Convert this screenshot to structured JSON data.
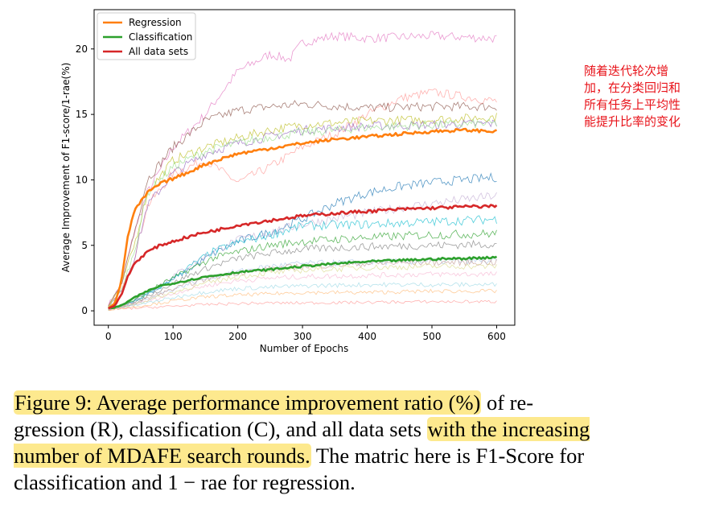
{
  "chart_data": {
    "type": "line",
    "title": "",
    "xlabel": "Number of Epochs",
    "ylabel": "Average Improvement of F1-score/1-rae(%)",
    "xlim": [
      -22,
      628
    ],
    "ylim": [
      -1.1,
      23.0
    ],
    "xticks": [
      0,
      100,
      200,
      300,
      400,
      500,
      600
    ],
    "yticks": [
      0,
      5,
      10,
      15,
      20
    ],
    "grid": false,
    "legend_position": "top-left",
    "series": [
      {
        "name": "Regression",
        "color": "#ff7f0e",
        "x": [
          0,
          10,
          20,
          30,
          40,
          60,
          80,
          100,
          120,
          150,
          180,
          200,
          250,
          300,
          350,
          400,
          450,
          500,
          550,
          600
        ],
        "values": [
          0.2,
          0.6,
          2.2,
          5.7,
          7.6,
          9.0,
          9.7,
          10.1,
          10.5,
          11.2,
          11.7,
          12.0,
          12.4,
          12.8,
          13.1,
          13.3,
          13.5,
          13.7,
          13.8,
          13.7
        ]
      },
      {
        "name": "Classification",
        "color": "#2ca02c",
        "x": [
          0,
          10,
          20,
          30,
          40,
          60,
          80,
          100,
          120,
          150,
          180,
          200,
          250,
          300,
          350,
          400,
          450,
          500,
          550,
          600
        ],
        "values": [
          0.2,
          0.25,
          0.4,
          0.7,
          1.0,
          1.5,
          1.9,
          2.1,
          2.3,
          2.6,
          2.8,
          2.95,
          3.15,
          3.4,
          3.6,
          3.75,
          3.85,
          3.95,
          4.0,
          4.1
        ]
      },
      {
        "name": "All data sets",
        "color": "#d62728",
        "x": [
          0,
          10,
          20,
          30,
          40,
          60,
          80,
          100,
          120,
          150,
          180,
          200,
          250,
          300,
          350,
          400,
          450,
          500,
          550,
          600
        ],
        "values": [
          0.2,
          0.4,
          1.2,
          2.6,
          3.6,
          4.5,
          5.0,
          5.3,
          5.6,
          6.0,
          6.3,
          6.55,
          6.9,
          7.25,
          7.45,
          7.6,
          7.75,
          7.85,
          7.95,
          8.0
        ]
      }
    ],
    "background_series": [
      {
        "color": "#e377c2",
        "x": [
          0,
          20,
          40,
          60,
          100,
          150,
          200,
          250,
          280,
          300,
          350,
          400,
          500,
          600
        ],
        "values": [
          0.5,
          2.0,
          6.0,
          9.0,
          12.5,
          15.0,
          18.3,
          19.6,
          19.2,
          20.5,
          21.0,
          20.8,
          21.0,
          20.8
        ]
      },
      {
        "color": "#ff9896",
        "x": [
          0,
          20,
          40,
          60,
          100,
          150,
          200,
          250,
          300,
          350,
          400,
          450,
          500,
          600
        ],
        "values": [
          0.3,
          1.5,
          4.0,
          8.0,
          10.5,
          11.5,
          9.8,
          11.0,
          12.5,
          13.5,
          15.0,
          16.2,
          16.7,
          16.0
        ]
      },
      {
        "color": "#8c564b",
        "x": [
          0,
          20,
          40,
          60,
          100,
          150,
          200,
          250,
          300,
          400,
          500,
          600
        ],
        "values": [
          0.3,
          2.0,
          6.0,
          10.0,
          12.5,
          14.5,
          15.3,
          15.6,
          15.8,
          15.5,
          15.6,
          15.6
        ]
      },
      {
        "color": "#bcbd22",
        "x": [
          0,
          20,
          40,
          60,
          100,
          150,
          200,
          250,
          300,
          400,
          500,
          600
        ],
        "values": [
          0.3,
          2.0,
          5.0,
          9.0,
          11.5,
          12.5,
          13.2,
          13.8,
          14.2,
          14.5,
          14.6,
          14.8
        ]
      },
      {
        "color": "#9467bd",
        "x": [
          0,
          20,
          40,
          60,
          100,
          150,
          200,
          250,
          300,
          400,
          500,
          600
        ],
        "values": [
          0.3,
          1.5,
          4.0,
          8.0,
          10.5,
          12.0,
          12.8,
          13.3,
          13.8,
          14.1,
          14.2,
          14.3
        ]
      },
      {
        "color": "#98df8a",
        "x": [
          0,
          20,
          40,
          60,
          100,
          150,
          200,
          250,
          300,
          400,
          500,
          600
        ],
        "values": [
          0.3,
          1.5,
          4.5,
          9.0,
          11.0,
          12.2,
          12.8,
          13.3,
          13.6,
          14.0,
          14.2,
          14.3
        ]
      },
      {
        "color": "#1f77b4",
        "x": [
          0,
          20,
          40,
          80,
          120,
          160,
          200,
          250,
          300,
          350,
          400,
          450,
          500,
          600
        ],
        "values": [
          0.1,
          0.3,
          0.8,
          1.8,
          3.0,
          4.3,
          5.3,
          6.0,
          7.0,
          8.2,
          9.0,
          9.5,
          9.8,
          10.2
        ]
      },
      {
        "color": "#c5b0d5",
        "x": [
          0,
          40,
          80,
          120,
          160,
          200,
          250,
          300,
          400,
          500,
          600
        ],
        "values": [
          0.1,
          0.8,
          2.0,
          3.3,
          4.5,
          5.4,
          6.0,
          6.6,
          7.5,
          8.2,
          8.8
        ]
      },
      {
        "color": "#17becf",
        "x": [
          0,
          40,
          80,
          120,
          160,
          200,
          250,
          300,
          400,
          500,
          600
        ],
        "values": [
          0.1,
          0.7,
          1.8,
          3.2,
          4.5,
          5.2,
          5.8,
          6.5,
          6.6,
          6.8,
          7.0
        ]
      },
      {
        "color": "#2ca02c",
        "x": [
          0,
          40,
          80,
          120,
          160,
          200,
          250,
          300,
          400,
          500,
          600
        ],
        "values": [
          0.1,
          0.8,
          2.0,
          3.0,
          4.0,
          4.5,
          5.0,
          5.3,
          5.6,
          5.8,
          5.9
        ]
      },
      {
        "color": "#7f7f7f",
        "x": [
          0,
          40,
          80,
          120,
          160,
          200,
          250,
          300,
          400,
          500,
          600
        ],
        "values": [
          0.1,
          0.6,
          1.6,
          2.6,
          3.4,
          4.0,
          4.4,
          4.7,
          4.9,
          5.0,
          5.1
        ]
      },
      {
        "color": "#aec7e8",
        "x": [
          0,
          40,
          80,
          120,
          160,
          200,
          250,
          300,
          400,
          500,
          600
        ],
        "values": [
          0.1,
          0.5,
          1.3,
          2.0,
          2.6,
          3.0,
          3.4,
          3.6,
          3.7,
          3.8,
          3.8
        ]
      },
      {
        "color": "#f7b6d2",
        "x": [
          0,
          40,
          80,
          120,
          160,
          200,
          250,
          300,
          400,
          500,
          600
        ],
        "values": [
          0.1,
          0.5,
          1.0,
          1.6,
          2.0,
          2.3,
          2.5,
          2.6,
          2.7,
          2.8,
          2.8
        ]
      },
      {
        "color": "#c49c94",
        "x": [
          0,
          40,
          80,
          120,
          160,
          200,
          250,
          300,
          400,
          500,
          600
        ],
        "values": [
          0.1,
          0.6,
          1.3,
          2.0,
          2.5,
          2.9,
          3.2,
          3.4,
          3.6,
          3.7,
          3.7
        ]
      },
      {
        "color": "#dbdb8d",
        "x": [
          0,
          40,
          80,
          120,
          160,
          200,
          250,
          300,
          400,
          500,
          600
        ],
        "values": [
          0.1,
          0.5,
          1.1,
          1.7,
          2.2,
          2.6,
          2.9,
          3.1,
          3.3,
          3.4,
          3.4
        ]
      },
      {
        "color": "#9edae5",
        "x": [
          0,
          40,
          80,
          120,
          160,
          200,
          250,
          300,
          400,
          500,
          600
        ],
        "values": [
          0.1,
          0.4,
          0.8,
          1.2,
          1.5,
          1.7,
          1.8,
          1.9,
          2.0,
          2.0,
          2.0
        ]
      },
      {
        "color": "#ffbb78",
        "x": [
          0,
          40,
          80,
          120,
          160,
          200,
          250,
          300,
          400,
          500,
          600
        ],
        "values": [
          0.1,
          0.3,
          0.6,
          0.9,
          1.1,
          1.2,
          1.3,
          1.4,
          1.4,
          1.5,
          1.5
        ]
      },
      {
        "color": "#ff9896",
        "x": [
          0,
          40,
          80,
          120,
          160,
          200,
          250,
          300,
          400,
          500,
          600
        ],
        "values": [
          0.1,
          0.2,
          0.3,
          0.4,
          0.5,
          0.55,
          0.6,
          0.6,
          0.65,
          0.7,
          0.7
        ]
      }
    ]
  },
  "annotation": {
    "text": "随着迭代轮次增加，在分类回归和所有任务上平均性能提升比率的变化",
    "color": "#e8141b"
  },
  "caption": {
    "part1": "Figure 9: Average performance improvement ratio (%)",
    "part2": " of re­gression (R), classification (C), and all data sets ",
    "part3": "with the in­creasing number of MDAFE search rounds.",
    "part4": " The matric here is F1-Score for classification and 1 − rae for regression.",
    "highlight_color": "#fde98e"
  }
}
